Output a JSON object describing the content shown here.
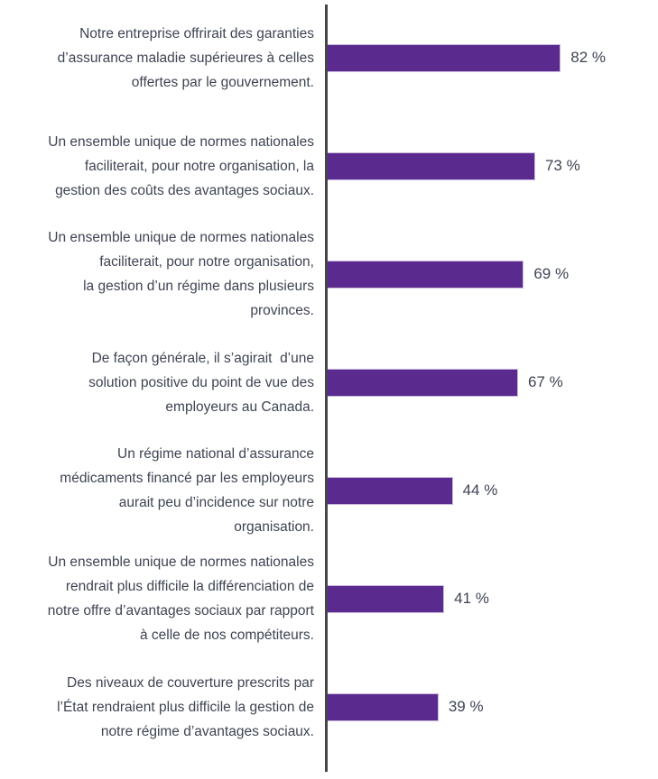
{
  "chart_data": {
    "type": "bar",
    "orientation": "horizontal",
    "title": "",
    "xlabel": "",
    "ylabel": "",
    "unit": "%",
    "xlim": [
      0,
      100
    ],
    "grid": false,
    "legend": false,
    "axis": {
      "baseline_visible": true
    },
    "categories": [
      "Notre entreprise offrirait des garanties d’assurance maladie supérieures à celles offertes par le gouvernement.",
      "Un ensemble unique de normes nationales faciliterait, pour notre organisation, la gestion des coûts des avantages sociaux.",
      "Un ensemble unique de normes nationales faciliterait, pour notre organisation, la gestion d’un régime dans plusieurs provinces.",
      "De façon générale, il s’agirait  d’une solution positive du point de vue des employeurs au Canada.",
      "Un régime national d’assurance médicaments financé par les employeurs aurait peu d’incidence sur notre organisation.",
      "Un ensemble unique de normes nationales rendrait plus difficile la différenciation de notre offre d’avantages sociaux par rapport à celle de nos compétiteurs.",
      "Des niveaux de couverture prescrits par l’État rendraient plus difficile la gestion de notre régime d’avantages sociaux."
    ],
    "category_lines": [
      [
        "Notre entreprise offrirait des garanties",
        "d’assurance maladie supérieures à celles",
        "offertes par le gouvernement."
      ],
      [
        "Un ensemble unique de normes nationales",
        "faciliterait, pour notre organisation, la",
        "gestion des coûts des avantages sociaux."
      ],
      [
        "Un ensemble unique de normes nationales",
        "faciliterait, pour notre organisation,",
        "la gestion d’un régime dans plusieurs",
        "provinces."
      ],
      [
        "De façon générale, il s’agirait  d’une",
        "solution positive du point de vue des",
        "employeurs au Canada."
      ],
      [
        "Un régime national d’assurance",
        "médicaments financé par les employeurs",
        "aurait peu d’incidence sur notre",
        "organisation."
      ],
      [
        "Un ensemble unique de normes nationales",
        "rendrait plus difficile la différenciation de",
        "notre offre d’avantages sociaux par rapport",
        "à celle de nos compétiteurs."
      ],
      [
        "Des niveaux de couverture prescrits par",
        "l’État rendraient plus difficile la gestion de",
        "notre régime d’avantages sociaux."
      ]
    ],
    "values": [
      82,
      73,
      69,
      67,
      44,
      41,
      39
    ],
    "value_labels": [
      "82 %",
      "73 %",
      "69 %",
      "67 %",
      "44 %",
      "41 %",
      "39 %"
    ],
    "colors": {
      "bar_fill": "#5b2a8e",
      "bar_border": "#c9bade",
      "axis_line": "#464649",
      "text": "#3e4452"
    }
  }
}
